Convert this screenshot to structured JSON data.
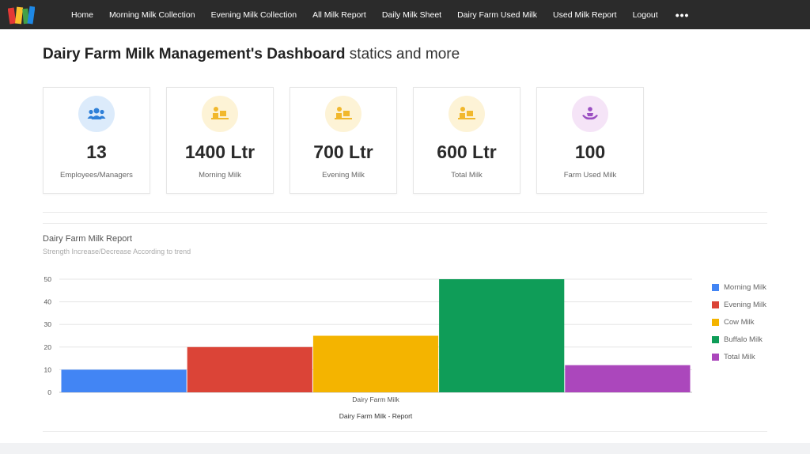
{
  "nav": {
    "items": [
      "Home",
      "Morning Milk Collection",
      "Evening Milk Collection",
      "All Milk Report",
      "Daily Milk Sheet",
      "Dairy Farm Used Milk",
      "Used Milk Report",
      "Logout"
    ],
    "more_icon": "more-icon"
  },
  "header": {
    "title_bold": "Dairy Farm Milk Management's Dashboard",
    "title_sub": "statics and more"
  },
  "cards": [
    {
      "value": "13",
      "label": "Employees/Managers",
      "icon": "users-icon",
      "bg": "#dcebfb",
      "fg": "#2f80d8"
    },
    {
      "value": "1400 Ltr",
      "label": "Morning Milk",
      "icon": "worker-desk-icon",
      "bg": "#fdf3d6",
      "fg": "#f1b82d"
    },
    {
      "value": "700 Ltr",
      "label": "Evening Milk",
      "icon": "worker-desk-icon",
      "bg": "#fdf3d6",
      "fg": "#f1b82d"
    },
    {
      "value": "600 Ltr",
      "label": "Total Milk",
      "icon": "worker-desk-icon",
      "bg": "#fdf3d6",
      "fg": "#f1b82d"
    },
    {
      "value": "100",
      "label": "Farm Used Milk",
      "icon": "hands-care-icon",
      "bg": "#f5e4f7",
      "fg": "#9b4fc2"
    }
  ],
  "chart_data": {
    "type": "bar",
    "title": "Dairy Farm Milk Report",
    "subtitle": "Strength Increase/Decrease According to trend",
    "categories": [
      "Dairy Farm Milk"
    ],
    "xlabel": "Dairy Farm Milk - Report",
    "ylim": [
      0,
      50
    ],
    "yticks": [
      0,
      10,
      20,
      30,
      40,
      50
    ],
    "grid": true,
    "legend_position": "right",
    "series": [
      {
        "name": "Morning Milk",
        "values": [
          10
        ],
        "color": "#4285f4"
      },
      {
        "name": "Evening Milk",
        "values": [
          20
        ],
        "color": "#db4437"
      },
      {
        "name": "Cow Milk",
        "values": [
          25
        ],
        "color": "#f4b400"
      },
      {
        "name": "Buffalo Milk",
        "values": [
          50
        ],
        "color": "#0f9d58"
      },
      {
        "name": "Total Milk",
        "values": [
          12
        ],
        "color": "#ab47bc"
      }
    ]
  }
}
